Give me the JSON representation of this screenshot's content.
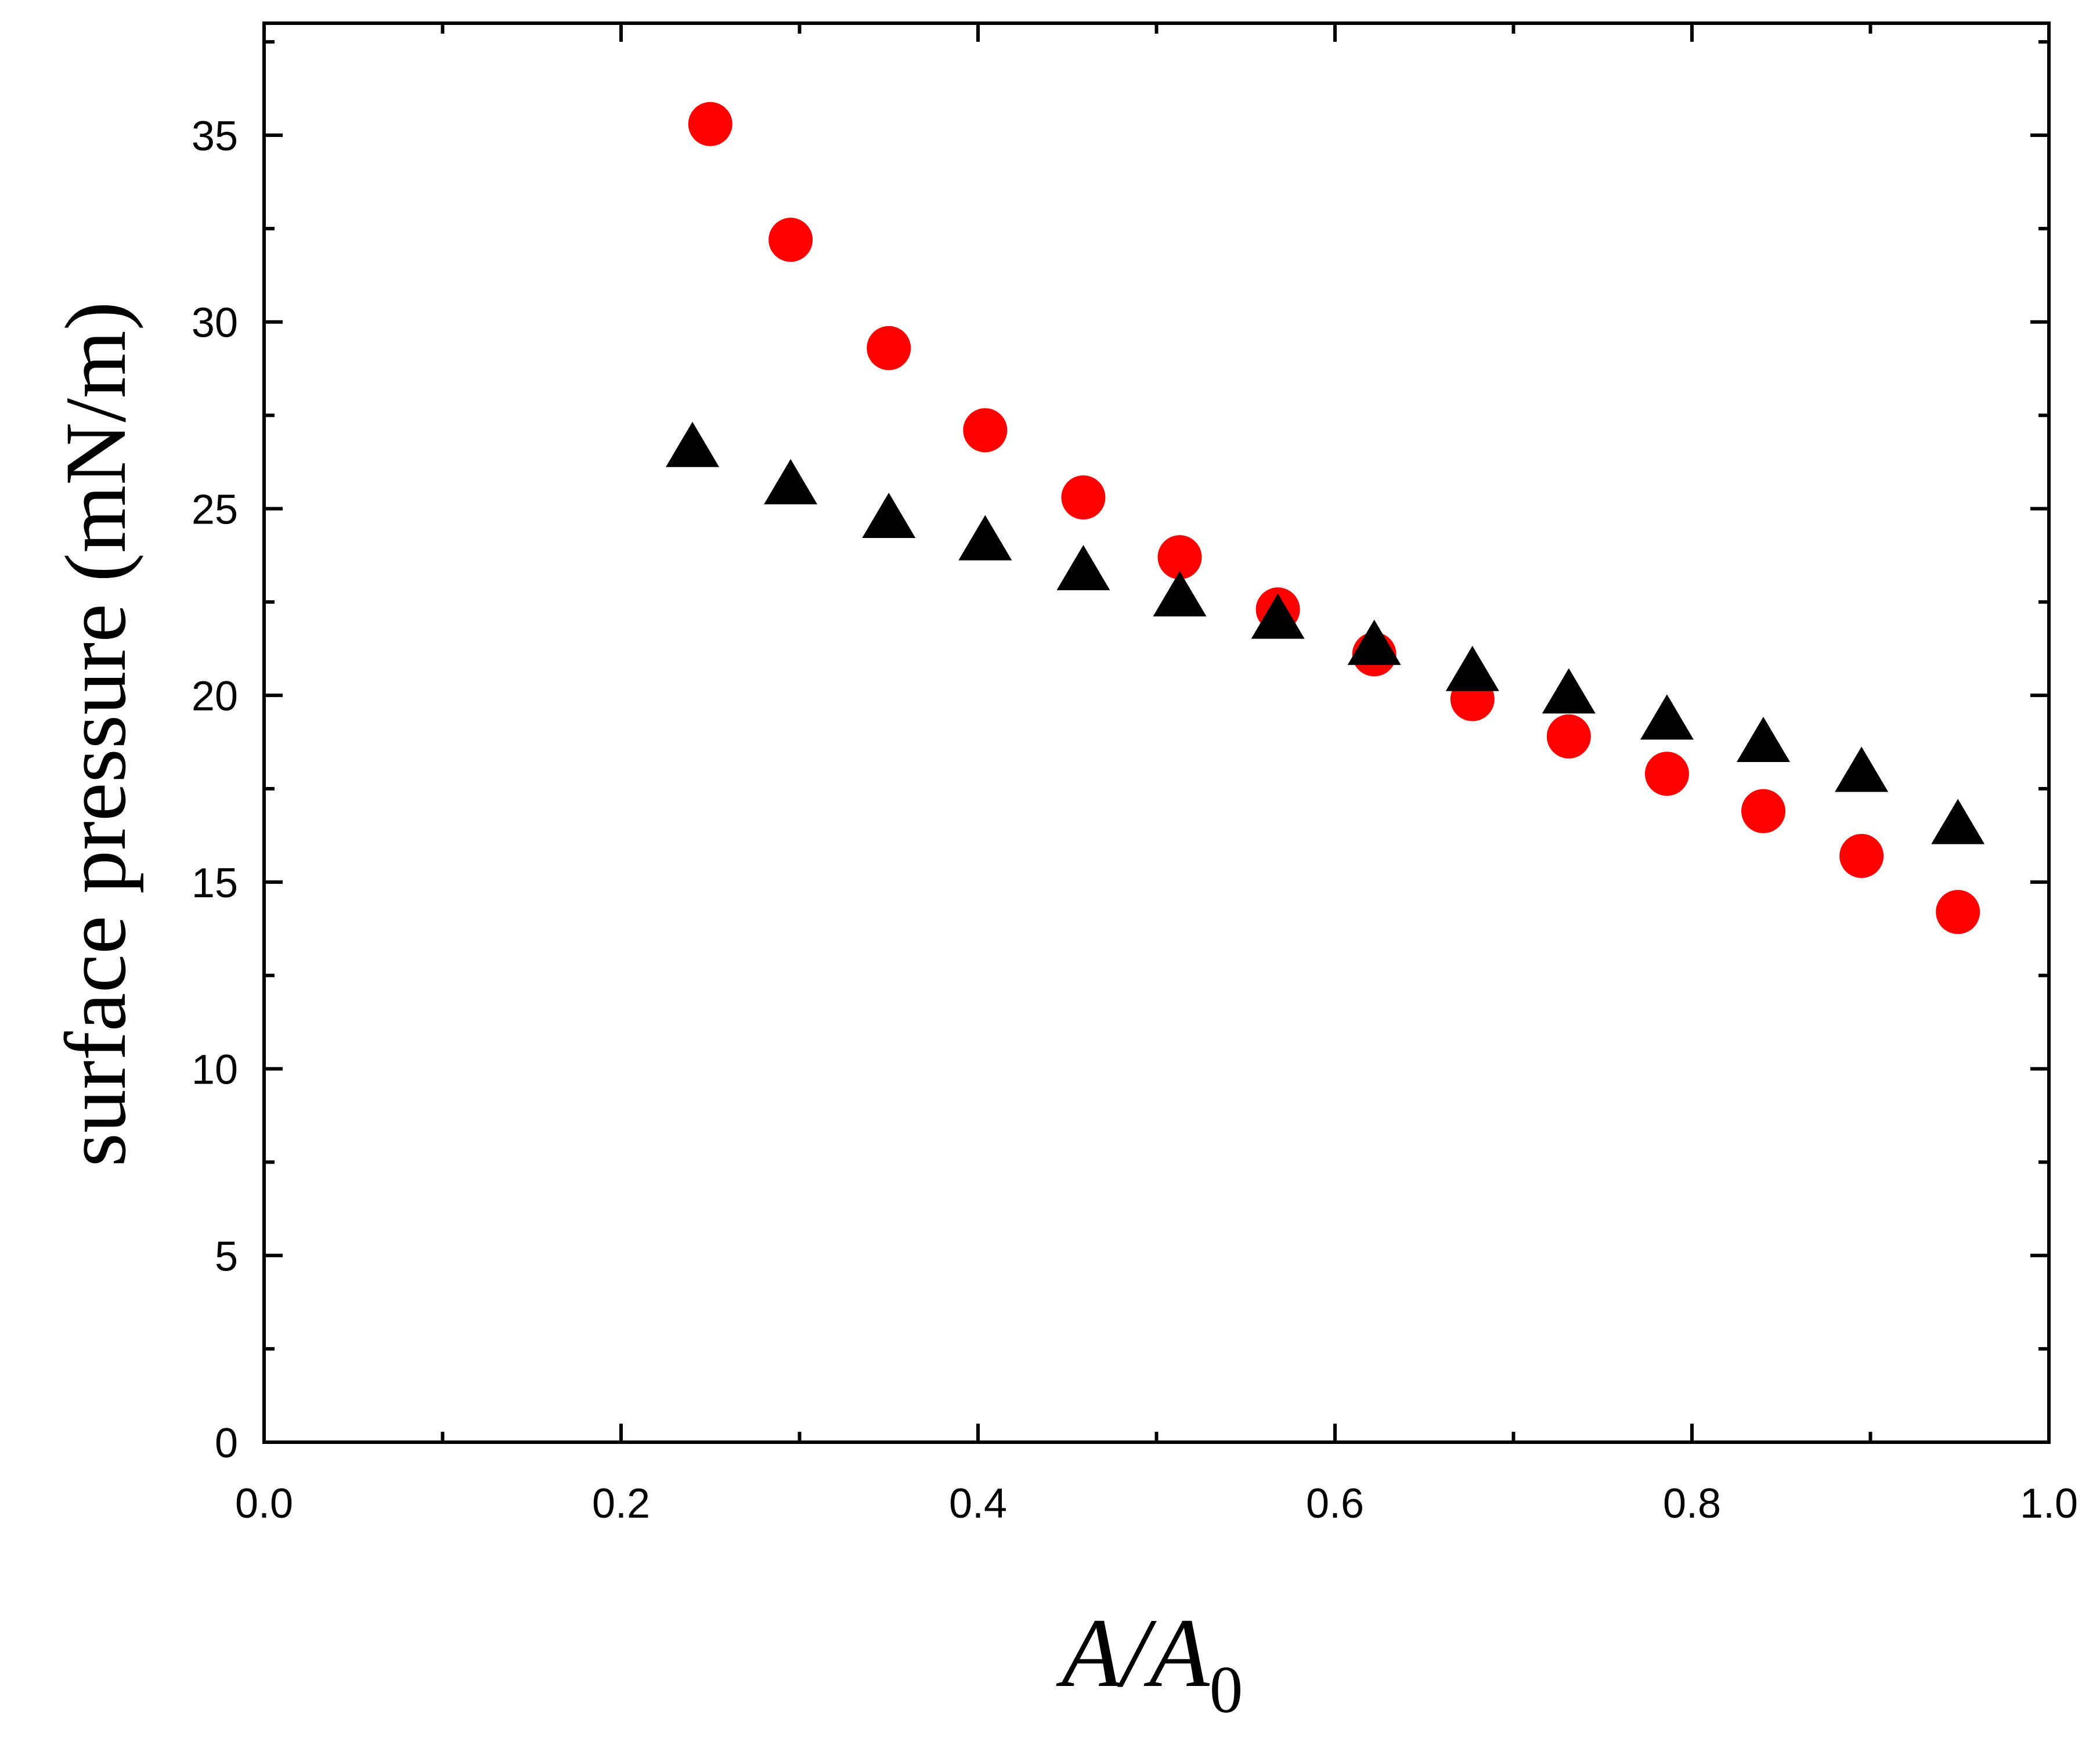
{
  "chart_data": {
    "type": "scatter",
    "title": "",
    "xlabel": {
      "main": "A/A",
      "subscript": "0"
    },
    "ylabel": "surface pressure (mN/m)",
    "xlim": [
      0.0,
      1.0
    ],
    "ylim": [
      0,
      38
    ],
    "x_ticks": [
      0.0,
      0.2,
      0.4,
      0.6,
      0.8,
      1.0
    ],
    "x_tick_labels": [
      "0.0",
      "0.2",
      "0.4",
      "0.6",
      "0.8",
      "1.0"
    ],
    "x_minor_ticks": [
      0.1,
      0.3,
      0.5,
      0.7,
      0.9
    ],
    "y_ticks": [
      0,
      5,
      10,
      15,
      20,
      25,
      30,
      35
    ],
    "y_tick_labels": [
      "0",
      "5",
      "10",
      "15",
      "20",
      "25",
      "30",
      "35"
    ],
    "y_minor_ticks": [
      2.5,
      7.5,
      12.5,
      17.5,
      22.5,
      27.5,
      32.5,
      37.5
    ],
    "grid": false,
    "legend": "none",
    "series": [
      {
        "marker": "circle",
        "color": "#ff0000",
        "points": [
          {
            "x": 0.25,
            "y": 35.3
          },
          {
            "x": 0.295,
            "y": 32.2
          },
          {
            "x": 0.35,
            "y": 29.3
          },
          {
            "x": 0.404,
            "y": 27.1
          },
          {
            "x": 0.459,
            "y": 25.3
          },
          {
            "x": 0.513,
            "y": 23.7
          },
          {
            "x": 0.568,
            "y": 22.3
          },
          {
            "x": 0.622,
            "y": 21.1
          },
          {
            "x": 0.677,
            "y": 19.9
          },
          {
            "x": 0.731,
            "y": 18.9
          },
          {
            "x": 0.786,
            "y": 17.9
          },
          {
            "x": 0.84,
            "y": 16.9
          },
          {
            "x": 0.895,
            "y": 15.7
          },
          {
            "x": 0.949,
            "y": 14.2
          }
        ]
      },
      {
        "marker": "triangle",
        "color": "#000000",
        "points": [
          {
            "x": 0.24,
            "y": 26.6
          },
          {
            "x": 0.295,
            "y": 25.6
          },
          {
            "x": 0.35,
            "y": 24.7
          },
          {
            "x": 0.404,
            "y": 24.1
          },
          {
            "x": 0.459,
            "y": 23.3
          },
          {
            "x": 0.513,
            "y": 22.6
          },
          {
            "x": 0.568,
            "y": 22.0
          },
          {
            "x": 0.622,
            "y": 21.3
          },
          {
            "x": 0.677,
            "y": 20.6
          },
          {
            "x": 0.731,
            "y": 20.0
          },
          {
            "x": 0.786,
            "y": 19.3
          },
          {
            "x": 0.84,
            "y": 18.7
          },
          {
            "x": 0.895,
            "y": 17.9
          },
          {
            "x": 0.949,
            "y": 16.5
          }
        ]
      }
    ]
  }
}
